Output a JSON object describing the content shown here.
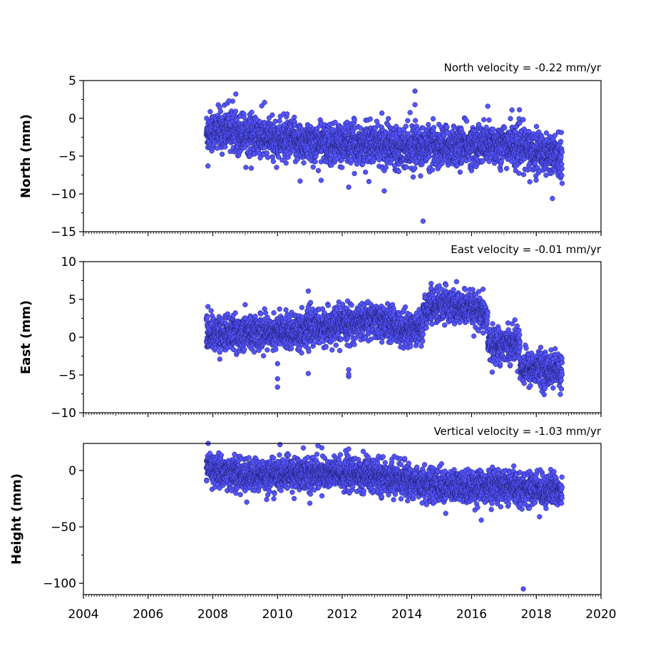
{
  "chart_data": [
    {
      "type": "scatter",
      "annotation": "North velocity = -0.22 mm/yr",
      "ylabel": "North (mm)",
      "xlim": [
        2004,
        2020
      ],
      "ylim": [
        -15,
        5
      ],
      "yticks": [
        5,
        0,
        -5,
        -10,
        -15
      ],
      "color": "#5555ff",
      "data_span": [
        2007.8,
        2018.8
      ],
      "segments": [
        {
          "x": [
            2007.8,
            2008.5,
            2009.5,
            2011.0,
            2013.0,
            2015.0,
            2017.0,
            2018.2,
            2018.8
          ],
          "y": [
            -1.8,
            -1.5,
            -2.6,
            -3.2,
            -3.5,
            -3.8,
            -3.4,
            -4.5,
            -5.0
          ]
        }
      ],
      "spread": 1.3,
      "series": [
        {
          "name": "",
          "x": [
            2007.85,
            2008.45,
            2008.5,
            2009.6,
            2009.2,
            2010.7,
            2011.35,
            2012.2,
            2013.3,
            2014.25,
            2014.25,
            2014.5,
            2016.5,
            2017.25,
            2017.8,
            2018.5,
            2018.8
          ],
          "y": [
            -6.3,
            2.0,
            2.3,
            2.1,
            0.8,
            -8.3,
            -8.2,
            -9.1,
            -9.6,
            3.6,
            1.8,
            -13.6,
            1.6,
            1.1,
            -8.4,
            -10.6,
            -8.6
          ]
        }
      ]
    },
    {
      "type": "scatter",
      "annotation": "East velocity = -0.01 mm/yr",
      "ylabel": "East (mm)",
      "xlim": [
        2004,
        2020
      ],
      "ylim": [
        -10,
        10
      ],
      "yticks": [
        10,
        5,
        0,
        -5,
        -10
      ],
      "color": "#5555ff",
      "data_span": [
        2007.8,
        2018.8
      ],
      "segments": [
        {
          "x": [
            2007.8,
            2009.0,
            2010.5,
            2012.0,
            2013.0,
            2014.0,
            2014.5
          ],
          "y": [
            0.4,
            0.6,
            0.8,
            1.6,
            2.3,
            1.0,
            1.4
          ]
        },
        {
          "x": [
            2014.5,
            2015.2,
            2016.0,
            2016.5
          ],
          "y": [
            3.5,
            4.3,
            3.6,
            2.6
          ]
        },
        {
          "x": [
            2016.5,
            2017.5
          ],
          "y": [
            -1.0,
            -0.8
          ]
        },
        {
          "x": [
            2017.5,
            2018.8
          ],
          "y": [
            -4.0,
            -4.5
          ]
        }
      ],
      "spread": 1.1,
      "series": [
        {
          "name": "",
          "x": [
            2010.0,
            2010.0,
            2010.0,
            2010.95,
            2010.95,
            2012.2,
            2012.2,
            2012.2,
            2010.95,
            2014.75,
            2015.0,
            2014.75,
            2007.95,
            2009.0
          ],
          "y": [
            -3.5,
            -5.5,
            -6.6,
            -4.8,
            6.1,
            -4.3,
            -5.2,
            -4.9,
            4.0,
            7.1,
            6.8,
            6.5,
            3.5,
            4.3
          ]
        }
      ]
    },
    {
      "type": "scatter",
      "annotation": "Vertical velocity = -1.03 mm/yr",
      "ylabel": "Height (mm)",
      "xlim": [
        2004,
        2020
      ],
      "ylim": [
        -110,
        24
      ],
      "yticks": [
        0,
        -50,
        -100
      ],
      "color": "#5555ff",
      "data_span": [
        2007.8,
        2018.8
      ],
      "segments": [
        {
          "x": [
            2007.8,
            2009.0,
            2010.5,
            2012.0,
            2013.5,
            2014.5,
            2015.5,
            2016.5,
            2017.5,
            2018.8
          ],
          "y": [
            2.0,
            -5.0,
            -3.0,
            -3.0,
            -6.0,
            -12.0,
            -15.0,
            -14.0,
            -16.0,
            -18.0
          ]
        }
      ],
      "spread": 7.0,
      "series": [
        {
          "name": "",
          "x": [
            2011.25,
            2010.8,
            2012.2,
            2012.65,
            2011.0,
            2009.05,
            2017.6,
            2016.3,
            2015.2,
            2018.1
          ],
          "y": [
            22.0,
            20.0,
            19.0,
            17.0,
            -29.0,
            -28.0,
            -105.0,
            -44.0,
            -38.0,
            -41.0
          ]
        }
      ]
    }
  ],
  "x_axis": {
    "tick_labels": [
      "2004",
      "2006",
      "2008",
      "2010",
      "2012",
      "2014",
      "2016",
      "2018",
      "2020"
    ],
    "tick_values": [
      2004,
      2006,
      2008,
      2010,
      2012,
      2014,
      2016,
      2018,
      2020
    ]
  }
}
